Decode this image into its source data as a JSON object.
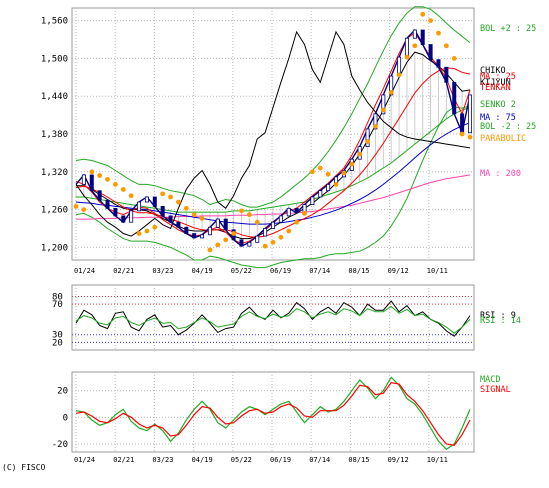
{
  "copyright": "(C) FISCO",
  "chart_data": [
    {
      "type": "line",
      "panel": "price",
      "x_labels": [
        "01/24",
        "02/21",
        "03/23",
        "04/19",
        "05/22",
        "06/19",
        "07/14",
        "08/15",
        "09/12",
        "10/11"
      ],
      "y_ticks": [
        "1,200",
        "1,260",
        "1,320",
        "1,380",
        "1,440",
        "1,500",
        "1,560"
      ],
      "ylim": [
        1180,
        1580
      ],
      "grid": true,
      "legend": [
        {
          "label": "BOL +2 : 25",
          "color": "#22aa22"
        },
        {
          "label": "CHIKO",
          "color": "#000000"
        },
        {
          "label": "MA : 25",
          "color": "#ff0000"
        },
        {
          "label": "KIJYUN",
          "color": "#000000"
        },
        {
          "label": "TENKAN",
          "color": "#ff0000"
        },
        {
          "label": "SENKO 2",
          "color": "#22aa22"
        },
        {
          "label": "MA : 75",
          "color": "#0000cc"
        },
        {
          "label": "BOL -2 : 25",
          "color": "#22aa22"
        },
        {
          "label": "PARABOLIC",
          "color": "#ff9900"
        },
        {
          "label": "MA : 200",
          "color": "#ff44aa"
        }
      ],
      "series": [
        {
          "key": "close",
          "color": "#000080",
          "values": [
            1300,
            1315,
            1290,
            1275,
            1262,
            1250,
            1240,
            1258,
            1272,
            1280,
            1265,
            1250,
            1240,
            1232,
            1222,
            1215,
            1220,
            1232,
            1245,
            1228,
            1212,
            1202,
            1208,
            1218,
            1230,
            1240,
            1250,
            1262,
            1255,
            1268,
            1280,
            1290,
            1300,
            1312,
            1322,
            1340,
            1360,
            1388,
            1412,
            1442,
            1472,
            1502,
            1532,
            1545,
            1522,
            1498,
            1486,
            1462,
            1412,
            1382,
            1442
          ]
        },
        {
          "key": "chiko",
          "color": "#000000",
          "values": [
            1300,
            1282,
            1268,
            1252,
            1240,
            1232,
            1222,
            1218,
            1226,
            1236,
            1246,
            1236,
            1230,
            1262,
            1292,
            1310,
            1322,
            1300,
            1272,
            1262,
            1282,
            1310,
            1330,
            1372,
            1382,
            1422,
            1462,
            1500,
            1542,
            1522,
            1482,
            1462,
            1502,
            1542,
            1522,
            1472,
            1450,
            1430,
            1415,
            1400,
            1390,
            1380,
            1375,
            1372,
            1370,
            1368,
            1366,
            1364,
            1362,
            1360,
            1358
          ]
        },
        {
          "key": "ma25",
          "color": "#ff0000",
          "values": [
            1295,
            1297,
            1293,
            1287,
            1280,
            1272,
            1264,
            1258,
            1255,
            1255,
            1253,
            1249,
            1245,
            1241,
            1236,
            1231,
            1228,
            1227,
            1228,
            1228,
            1225,
            1220,
            1217,
            1216,
            1218,
            1222,
            1228,
            1234,
            1240,
            1246,
            1252,
            1260,
            1270,
            1280,
            1290,
            1302,
            1315,
            1330,
            1347,
            1365,
            1385,
            1405,
            1425,
            1445,
            1460,
            1472,
            1480,
            1485,
            1484,
            1478,
            1475
          ]
        },
        {
          "key": "ma75",
          "color": "#0000cc",
          "values": [
            1272,
            1271,
            1270,
            1268,
            1267,
            1265,
            1264,
            1262,
            1261,
            1260,
            1258,
            1256,
            1254,
            1252,
            1250,
            1248,
            1246,
            1244,
            1242,
            1240,
            1239,
            1238,
            1237,
            1237,
            1237,
            1238,
            1239,
            1241,
            1243,
            1245,
            1248,
            1251,
            1255,
            1259,
            1264,
            1270,
            1276,
            1283,
            1291,
            1300,
            1310,
            1320,
            1331,
            1342,
            1353,
            1363,
            1372,
            1380,
            1387,
            1393,
            1398
          ]
        },
        {
          "key": "ma200",
          "color": "#ff44aa",
          "values": [
            1245,
            1245,
            1245,
            1246,
            1246,
            1246,
            1247,
            1247,
            1247,
            1248,
            1248,
            1248,
            1248,
            1249,
            1249,
            1249,
            1250,
            1250,
            1250,
            1250,
            1251,
            1251,
            1251,
            1252,
            1252,
            1253,
            1253,
            1254,
            1255,
            1256,
            1257,
            1259,
            1261,
            1263,
            1265,
            1267,
            1270,
            1273,
            1276,
            1279,
            1283,
            1287,
            1291,
            1295,
            1299,
            1303,
            1306,
            1309,
            1311,
            1313,
            1315
          ]
        },
        {
          "key": "bol_upper",
          "color": "#22aa22",
          "values": [
            1338,
            1340,
            1338,
            1334,
            1330,
            1322,
            1314,
            1306,
            1300,
            1300,
            1298,
            1294,
            1290,
            1288,
            1285,
            1282,
            1276,
            1268,
            1272,
            1276,
            1274,
            1268,
            1264,
            1264,
            1268,
            1272,
            1280,
            1290,
            1300,
            1310,
            1322,
            1336,
            1352,
            1370,
            1390,
            1412,
            1436,
            1460,
            1486,
            1512,
            1536,
            1556,
            1572,
            1582,
            1582,
            1578,
            1568,
            1556,
            1545,
            1535,
            1525
          ]
        },
        {
          "key": "bol_lower",
          "color": "#22aa22",
          "values": [
            1252,
            1254,
            1248,
            1240,
            1230,
            1222,
            1214,
            1210,
            1210,
            1210,
            1208,
            1204,
            1200,
            1194,
            1188,
            1180,
            1180,
            1186,
            1184,
            1180,
            1176,
            1172,
            1170,
            1168,
            1168,
            1172,
            1176,
            1178,
            1180,
            1182,
            1182,
            1184,
            1188,
            1190,
            1190,
            1192,
            1194,
            1200,
            1208,
            1218,
            1234,
            1254,
            1278,
            1308,
            1338,
            1366,
            1392,
            1414,
            1423,
            1421,
            1425
          ]
        },
        {
          "key": "tenkan",
          "color": "#ff0000",
          "values": [
            1305,
            1300,
            1288,
            1272,
            1262,
            1256,
            1252,
            1258,
            1264,
            1262,
            1254,
            1244,
            1236,
            1228,
            1222,
            1218,
            1220,
            1228,
            1232,
            1224,
            1212,
            1206,
            1210,
            1218,
            1228,
            1238,
            1250,
            1258,
            1262,
            1272,
            1282,
            1292,
            1302,
            1314,
            1326,
            1346,
            1370,
            1398,
            1426,
            1452,
            1480,
            1508,
            1532,
            1540,
            1522,
            1502,
            1488,
            1468,
            1436,
            1412,
            1450
          ]
        },
        {
          "key": "kijun",
          "color": "#000000",
          "values": [
            1298,
            1298,
            1292,
            1284,
            1276,
            1268,
            1262,
            1260,
            1260,
            1258,
            1252,
            1246,
            1240,
            1234,
            1228,
            1226,
            1226,
            1228,
            1228,
            1224,
            1218,
            1214,
            1214,
            1218,
            1224,
            1232,
            1240,
            1248,
            1254,
            1262,
            1270,
            1280,
            1290,
            1302,
            1314,
            1330,
            1348,
            1370,
            1394,
            1418,
            1444,
            1470,
            1494,
            1510,
            1506,
            1496,
            1488,
            1476,
            1462,
            1448,
            1450
          ]
        },
        {
          "key": "senko2",
          "color": "#22aa22",
          "values": [
            1280,
            1280,
            1278,
            1276,
            1274,
            1272,
            1270,
            1268,
            1266,
            1264,
            1262,
            1260,
            1258,
            1256,
            1256,
            1256,
            1256,
            1256,
            1256,
            1256,
            1258,
            1258,
            1258,
            1260,
            1262,
            1264,
            1266,
            1268,
            1270,
            1272,
            1276,
            1280,
            1284,
            1288,
            1292,
            1298,
            1304,
            1310,
            1318,
            1326,
            1334,
            1344,
            1354,
            1364,
            1374,
            1384,
            1394,
            1404,
            1412,
            1418,
            1422
          ]
        },
        {
          "key": "parabolic",
          "color": "#ff9900",
          "values": [
            1265,
            1260,
            1320,
            1314,
            1308,
            1300,
            1292,
            1282,
            1222,
            1226,
            1232,
            1285,
            1280,
            1272,
            1262,
            1252,
            1246,
            1196,
            1204,
            1212,
            1222,
            1258,
            1252,
            1240,
            1202,
            1208,
            1216,
            1226,
            1240,
            1254,
            1320,
            1326,
            1316,
            1300,
            1318,
            1332,
            1348,
            1368,
            1392,
            1418,
            1446,
            1474,
            1502,
            1520,
            1570,
            1560,
            1540,
            1520,
            1500,
            1380,
            1375
          ]
        }
      ]
    },
    {
      "type": "line",
      "panel": "rsi",
      "y_ticks": [
        "20",
        "30",
        "70",
        "80"
      ],
      "ylim": [
        10,
        95
      ],
      "legend": [
        {
          "label": "RSI : 9",
          "color": "#000000"
        },
        {
          "label": "RSI : 14",
          "color": "#22aa22"
        }
      ],
      "series": [
        {
          "key": "rsi9",
          "color": "#000000",
          "values": [
            45,
            62,
            56,
            42,
            38,
            58,
            60,
            40,
            35,
            50,
            56,
            40,
            42,
            30,
            36,
            45,
            56,
            45,
            33,
            38,
            40,
            58,
            66,
            55,
            50,
            62,
            52,
            58,
            72,
            64,
            50,
            60,
            66,
            58,
            72,
            66,
            55,
            70,
            62,
            62,
            74,
            60,
            68,
            55,
            60,
            50,
            45,
            35,
            28,
            40,
            55
          ]
        },
        {
          "key": "rsi14",
          "color": "#22aa22",
          "values": [
            48,
            55,
            52,
            45,
            43,
            52,
            54,
            46,
            42,
            48,
            52,
            45,
            46,
            38,
            40,
            46,
            52,
            47,
            40,
            42,
            44,
            54,
            60,
            54,
            51,
            57,
            53,
            55,
            64,
            60,
            52,
            57,
            60,
            56,
            64,
            61,
            55,
            64,
            60,
            60,
            67,
            58,
            63,
            55,
            57,
            50,
            46,
            40,
            32,
            40,
            50
          ]
        }
      ],
      "levels": [
        {
          "label": "80",
          "value": 80,
          "color": "#ff3333"
        },
        {
          "label": "70",
          "value": 70,
          "color": "#ff3333"
        },
        {
          "label": "30",
          "value": 30,
          "color": "#3333ff"
        },
        {
          "label": "20",
          "value": 20,
          "color": "#3333ff"
        }
      ]
    },
    {
      "type": "line",
      "panel": "macd",
      "x_labels": [
        "01/24",
        "02/21",
        "03/23",
        "04/19",
        "05/22",
        "06/19",
        "07/14",
        "08/15",
        "09/12",
        "10/11"
      ],
      "y_ticks": [
        "-20",
        "0",
        "20"
      ],
      "ylim": [
        -26,
        34
      ],
      "legend": [
        {
          "label": "MACD",
          "color": "#22aa22"
        },
        {
          "label": "SIGNAL",
          "color": "#ff0000"
        }
      ],
      "series": [
        {
          "key": "macd",
          "color": "#22aa22",
          "values": [
            5,
            4,
            -2,
            -6,
            -4,
            2,
            6,
            -3,
            -8,
            -10,
            -5,
            -10,
            -18,
            -12,
            -2,
            6,
            12,
            6,
            -4,
            -8,
            -2,
            4,
            8,
            6,
            2,
            6,
            10,
            12,
            4,
            -4,
            2,
            8,
            4,
            6,
            12,
            20,
            28,
            22,
            14,
            20,
            30,
            24,
            14,
            10,
            2,
            -8,
            -18,
            -24,
            -20,
            -8,
            6
          ]
        },
        {
          "key": "signal",
          "color": "#ff0000",
          "values": [
            3,
            4,
            1,
            -3,
            -4,
            -1,
            3,
            0,
            -5,
            -8,
            -6,
            -8,
            -14,
            -13,
            -6,
            2,
            8,
            7,
            0,
            -5,
            -4,
            1,
            5,
            6,
            3,
            4,
            8,
            10,
            7,
            1,
            0,
            5,
            5,
            5,
            9,
            16,
            24,
            23,
            17,
            18,
            26,
            25,
            17,
            12,
            5,
            -4,
            -13,
            -20,
            -21,
            -13,
            -2
          ]
        }
      ]
    }
  ]
}
